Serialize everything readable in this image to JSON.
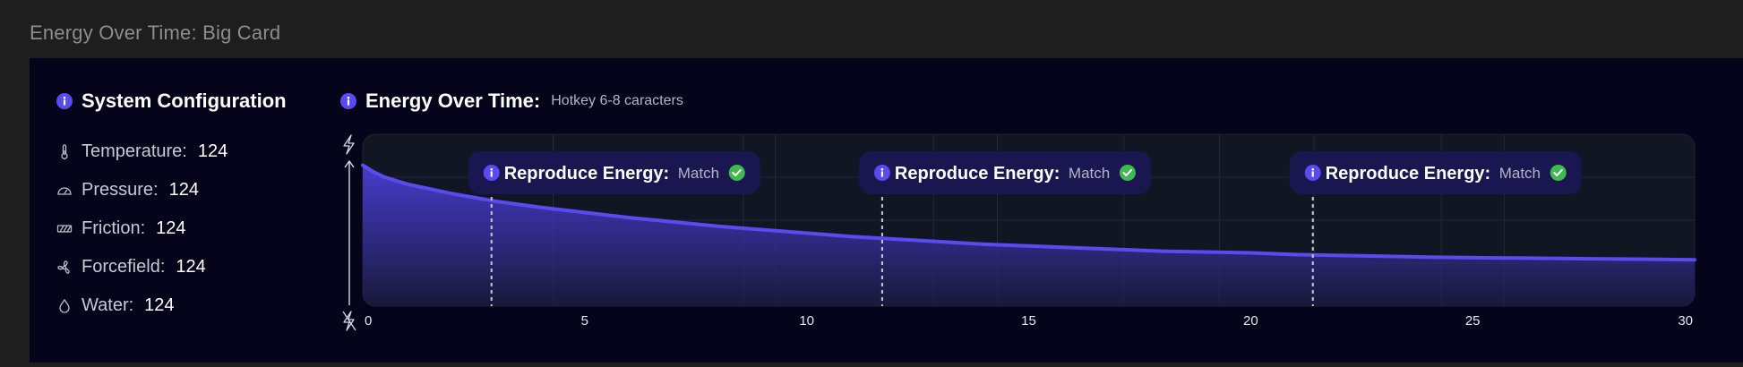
{
  "page": {
    "title": "Energy Over Time: Big Card"
  },
  "config": {
    "title": "System Configuration",
    "items": [
      {
        "icon": "thermometer-icon",
        "label": "Temperature:",
        "value": "124"
      },
      {
        "icon": "gauge-icon",
        "label": "Pressure:",
        "value": "124"
      },
      {
        "icon": "friction-icon",
        "label": "Friction:",
        "value": "124"
      },
      {
        "icon": "fan-icon",
        "label": "Forcefield:",
        "value": "124"
      },
      {
        "icon": "water-drop-icon",
        "label": "Water:",
        "value": "124"
      }
    ]
  },
  "chart": {
    "title": "Energy Over Time:",
    "subtitle": "Hotkey 6-8 caracters"
  },
  "chart_data": {
    "type": "area",
    "xlim": [
      0,
      30
    ],
    "x_ticks": [
      0,
      5,
      10,
      15,
      20,
      25,
      30
    ],
    "ylim": [
      0,
      1
    ],
    "grid": true,
    "y_axis_icons": [
      "bolt-icon",
      "bolt-off-icon"
    ],
    "series": [
      {
        "x": [
          0,
          0.25,
          0.5,
          1,
          2,
          3,
          4,
          5,
          6,
          7,
          8,
          9,
          10,
          11,
          12,
          13,
          14,
          15,
          16,
          17,
          18,
          19,
          20,
          21,
          22,
          23,
          24,
          25,
          26,
          27,
          28,
          29,
          30
        ],
        "y": [
          0.82,
          0.78,
          0.75,
          0.71,
          0.655,
          0.61,
          0.575,
          0.545,
          0.515,
          0.49,
          0.465,
          0.445,
          0.425,
          0.405,
          0.39,
          0.375,
          0.36,
          0.35,
          0.34,
          0.33,
          0.32,
          0.315,
          0.31,
          0.3,
          0.295,
          0.29,
          0.285,
          0.282,
          0.28,
          0.277,
          0.275,
          0.273,
          0.27
        ],
        "color": "#5a4bf0"
      }
    ],
    "annotations": [
      {
        "x": 2.9,
        "label": "Reproduce Energy:",
        "status": "Match"
      },
      {
        "x": 11.7,
        "label": "Reproduce Energy:",
        "status": "Match"
      },
      {
        "x": 21.4,
        "label": "Reproduce Energy:",
        "status": "Match"
      }
    ],
    "colors": {
      "accent": "#5a4bf0",
      "match": "#3fb950",
      "badge": "#1a1650",
      "plot_bg": "#12151f"
    }
  }
}
